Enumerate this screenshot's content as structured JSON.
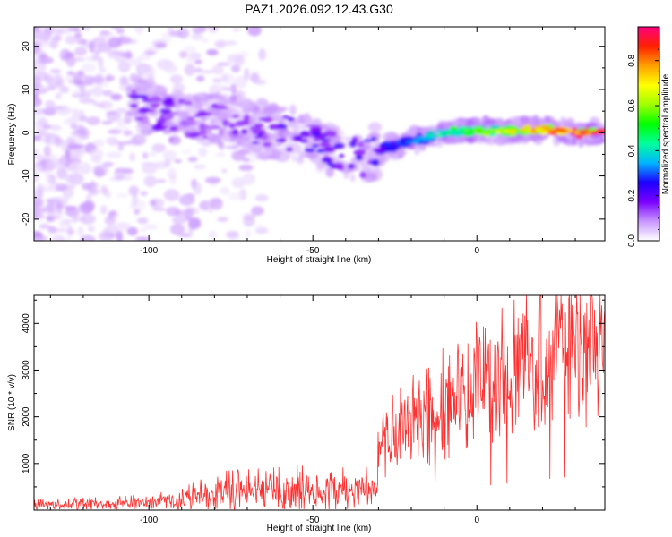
{
  "title": "PAZ1.2026.092.12.43.G30",
  "chart_data": [
    {
      "type": "heatmap",
      "name": "spectrogram",
      "xlabel": "Height of straight line (km)",
      "ylabel": "Frequency (Hz)",
      "xlim": [
        -135,
        39
      ],
      "ylim": [
        -25,
        24.5
      ],
      "xticks": [
        -100,
        -50,
        0
      ],
      "yticks": [
        -20,
        -10,
        0,
        10,
        20
      ],
      "colorbar": {
        "label": "Normalized spectral amplitude",
        "range": [
          0.0,
          0.95
        ],
        "ticks": [
          "0.0",
          "0.2",
          "0.4",
          "0.6",
          "0.8"
        ],
        "tick_values": [
          0.0,
          0.2,
          0.4,
          0.6,
          0.8
        ],
        "colors": [
          "#ffffff",
          "#c896ff",
          "#7a00ff",
          "#1c00ff",
          "#00b4ff",
          "#00ff9c",
          "#00ff00",
          "#a0ff00",
          "#ffff00",
          "#ffa000",
          "#ff2000",
          "#ff007f"
        ]
      },
      "ridge": [
        {
          "x": -103,
          "f": 7,
          "a": 0.2
        },
        {
          "x": -95,
          "f": 4,
          "a": 0.18
        },
        {
          "x": -85,
          "f": 3,
          "a": 0.15
        },
        {
          "x": -75,
          "f": 2.5,
          "a": 0.16
        },
        {
          "x": -65,
          "f": 0,
          "a": 0.2
        },
        {
          "x": -55,
          "f": 0,
          "a": 0.22
        },
        {
          "x": -45,
          "f": -4,
          "a": 0.2
        },
        {
          "x": -35,
          "f": -6,
          "a": 0.22
        },
        {
          "x": -30,
          "f": -4,
          "a": 0.25
        },
        {
          "x": -20,
          "f": -2,
          "a": 0.3
        },
        {
          "x": -10,
          "f": 0,
          "a": 0.45
        },
        {
          "x": 0,
          "f": 0.5,
          "a": 0.55
        },
        {
          "x": 10,
          "f": 0.5,
          "a": 0.65
        },
        {
          "x": 20,
          "f": 0.8,
          "a": 0.75
        },
        {
          "x": 30,
          "f": 0,
          "a": 0.85
        },
        {
          "x": 39,
          "f": 0,
          "a": 0.95
        }
      ]
    },
    {
      "type": "line",
      "name": "snr",
      "xlabel": "Height of straight line (km)",
      "ylabel": "SNR (10 * v/v)",
      "xlim": [
        -135,
        39
      ],
      "ylim": [
        0,
        4600
      ],
      "xticks": [
        -100,
        -50,
        0
      ],
      "yticks": [
        1000,
        2000,
        3000,
        4000
      ],
      "color": "#ff3030",
      "trend": [
        {
          "x": -135,
          "y": 100
        },
        {
          "x": -100,
          "y": 150
        },
        {
          "x": -90,
          "y": 220
        },
        {
          "x": -78,
          "y": 380
        },
        {
          "x": -60,
          "y": 420
        },
        {
          "x": -40,
          "y": 460
        },
        {
          "x": -31,
          "y": 450
        },
        {
          "x": -29,
          "y": 1500
        },
        {
          "x": -20,
          "y": 1900
        },
        {
          "x": -10,
          "y": 2150
        },
        {
          "x": 0,
          "y": 2500
        },
        {
          "x": 10,
          "y": 2900
        },
        {
          "x": 20,
          "y": 3300
        },
        {
          "x": 30,
          "y": 3600
        },
        {
          "x": 39,
          "y": 3700
        }
      ]
    }
  ]
}
